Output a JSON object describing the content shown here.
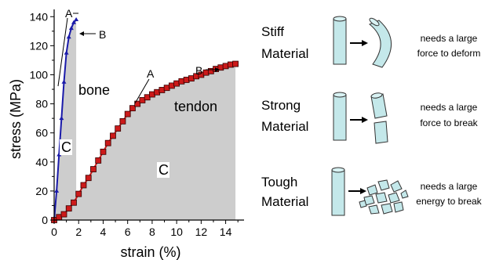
{
  "chart_data": {
    "type": "line",
    "xlabel": "strain (%)",
    "ylabel": "stress (MPa)",
    "xlim": [
      0,
      15.5
    ],
    "ylim": [
      0,
      145
    ],
    "xticks": [
      "0",
      "2",
      "4",
      "6",
      "8",
      "10",
      "12",
      "14"
    ],
    "yticks": [
      "0",
      "20",
      "40",
      "60",
      "80",
      "100",
      "120",
      "140"
    ],
    "grid": false,
    "series": [
      {
        "name": "bone",
        "color": "#1a1aaa",
        "marker": "triangle",
        "x": [
          0,
          0.2,
          0.4,
          0.6,
          0.8,
          1.0,
          1.2,
          1.4,
          1.6,
          1.8
        ],
        "y": [
          0,
          20,
          45,
          70,
          95,
          115,
          126,
          132,
          136,
          138
        ]
      },
      {
        "name": "tendon",
        "color": "#cc1a1a",
        "marker": "square",
        "x": [
          0,
          0.4,
          0.8,
          1.2,
          1.6,
          2.0,
          2.4,
          2.8,
          3.2,
          3.6,
          4.0,
          4.4,
          4.8,
          5.2,
          5.6,
          6.0,
          6.4,
          6.8,
          7.2,
          7.6,
          8.0,
          8.4,
          8.8,
          9.2,
          9.6,
          10.0,
          10.4,
          10.8,
          11.2,
          11.6,
          12.0,
          12.4,
          12.8,
          13.2,
          13.6,
          14.0,
          14.4,
          14.8
        ],
        "y": [
          0,
          2,
          4,
          8,
          12,
          18,
          24,
          29,
          35,
          41,
          47,
          53,
          58,
          63,
          68,
          73,
          77,
          80,
          82.5,
          84.5,
          86.5,
          88,
          89.5,
          91,
          92.5,
          94,
          95.5,
          96.5,
          97.5,
          99,
          100,
          101.5,
          102.5,
          104,
          105,
          106,
          107,
          107.5
        ]
      }
    ],
    "annotations": {
      "bone_label": "bone",
      "tendon_label": "tendon",
      "bone_A": "A",
      "bone_B": "B",
      "tendon_A": "A",
      "tendon_B": "B",
      "bone_area": "C",
      "tendon_area": "C"
    }
  },
  "panels": [
    {
      "title1": "Stiff",
      "title2": "Material",
      "desc1": "needs a large",
      "desc2": "force to deform"
    },
    {
      "title1": "Strong",
      "title2": "Material",
      "desc1": "needs a large",
      "desc2": "force to break"
    },
    {
      "title1": "Tough",
      "title2": "Material",
      "desc1": "needs a large",
      "desc2": "energy to break"
    }
  ]
}
